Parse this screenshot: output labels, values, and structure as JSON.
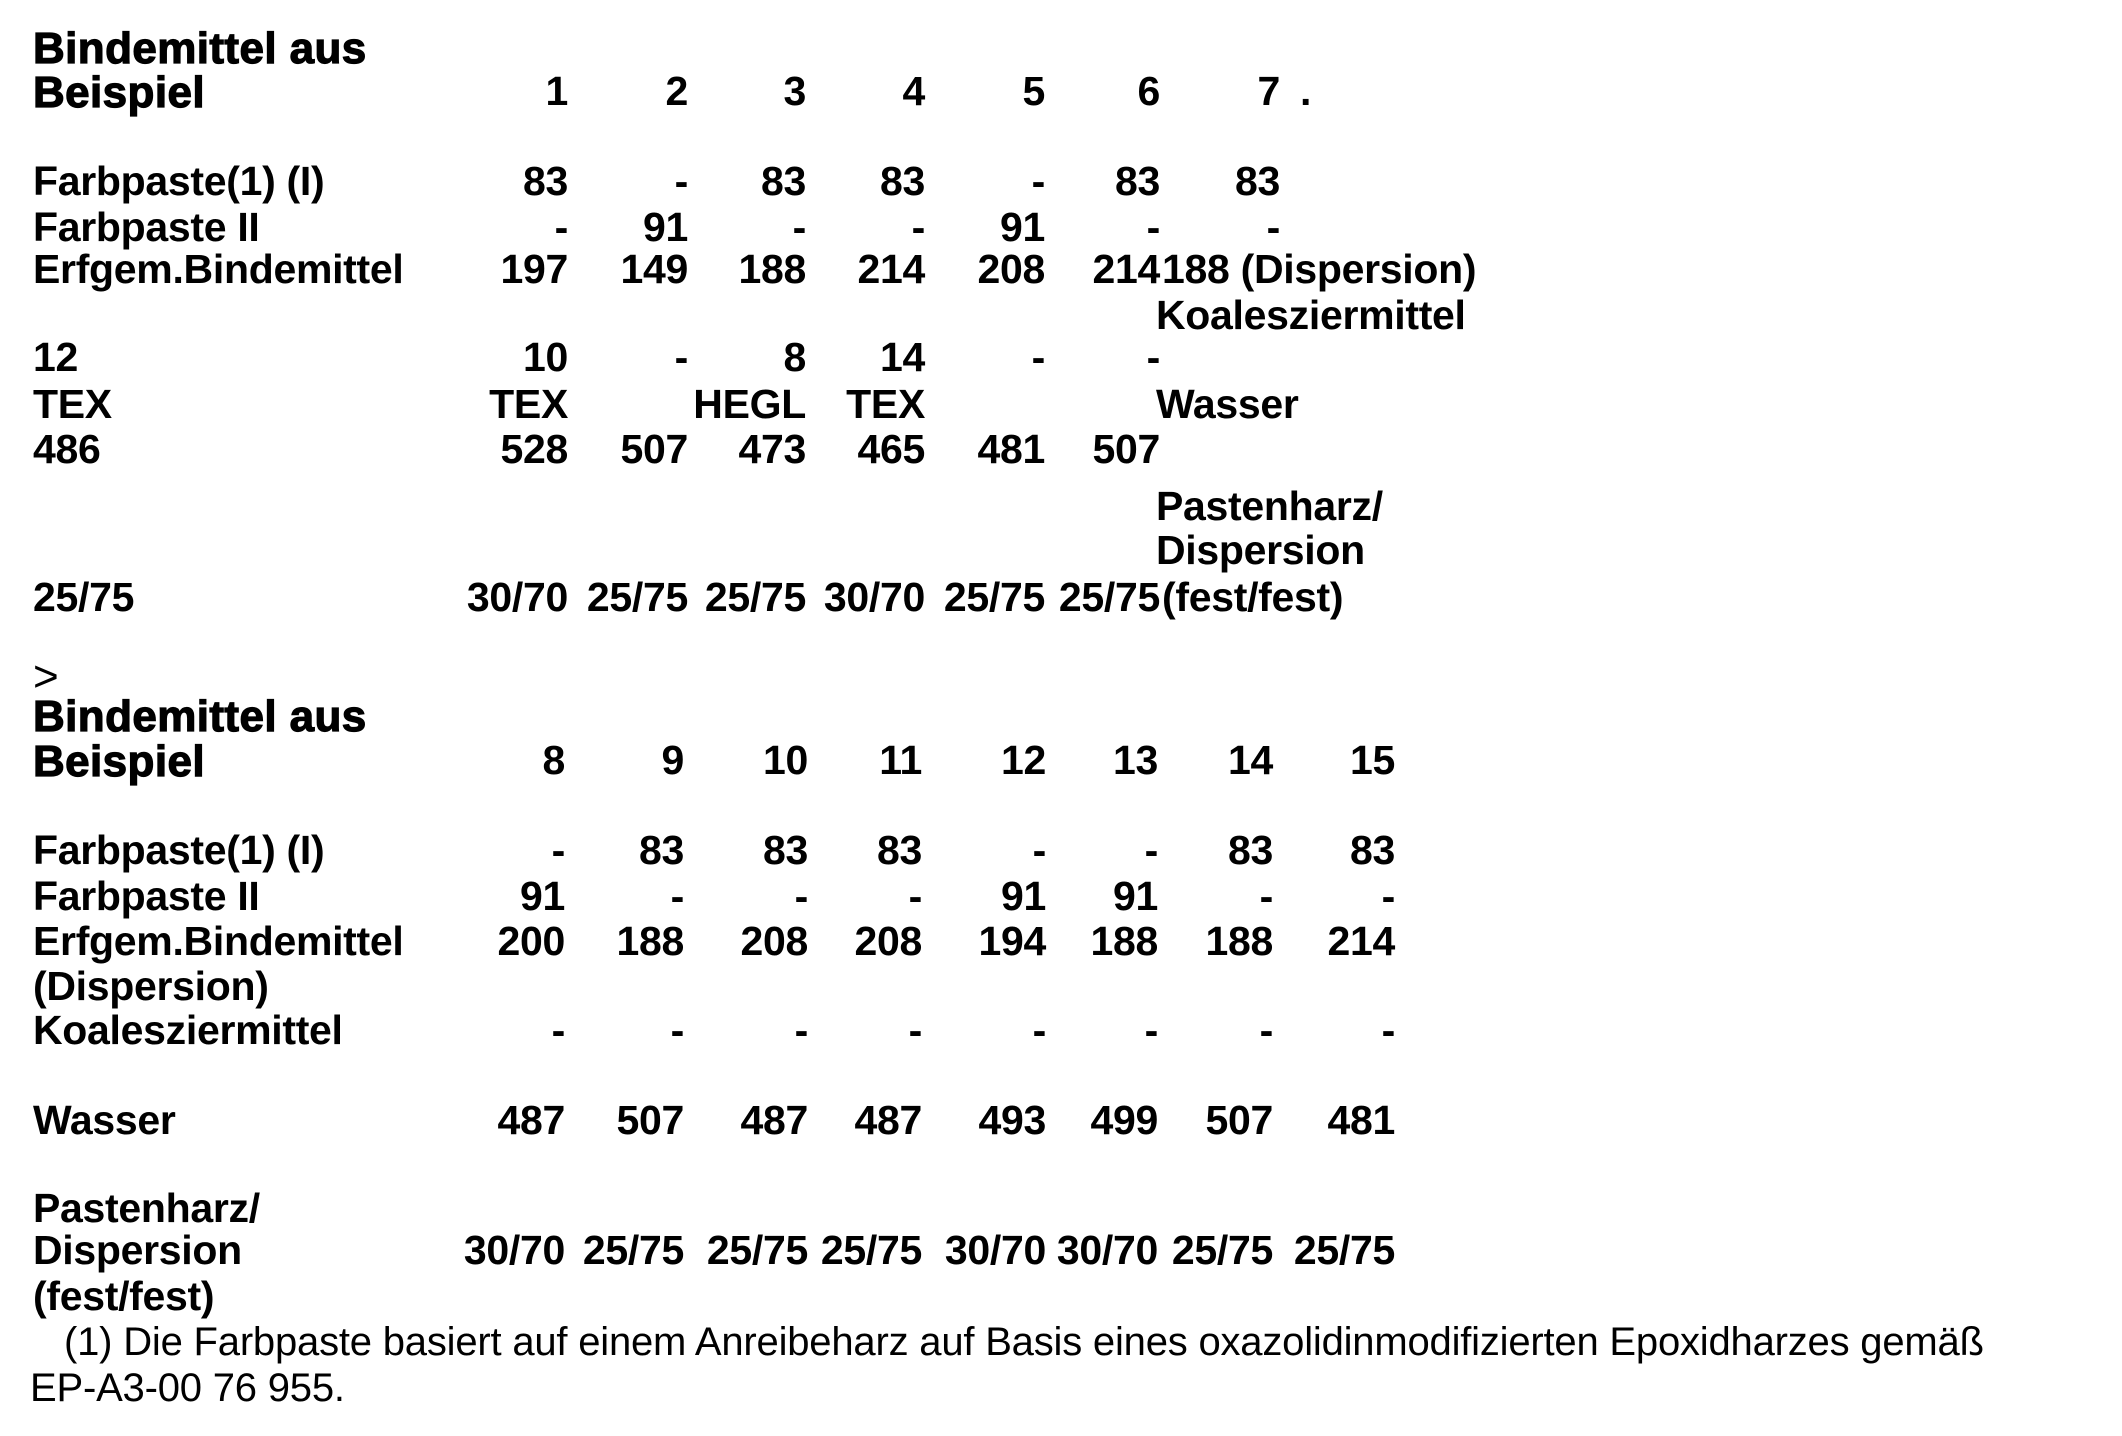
{
  "document": {
    "type": "scanned-patent-table-page",
    "text_color": "#000000",
    "background_color": "#ffffff",
    "tables": [
      {
        "lead_symbol": "",
        "title_line1": "Bindemittel aus",
        "title_line2": "Beispiel",
        "column_headers": [
          "1",
          "2",
          "3",
          "4",
          "5",
          "6",
          "7"
        ],
        "header_suffix": ".",
        "rows": [
          {
            "label": "Farbpaste(1) (I)",
            "values": [
              "83",
              "-",
              "83",
              "83",
              "-",
              "83",
              "83"
            ]
          },
          {
            "label": "Farbpaste II",
            "values": [
              "-",
              "91",
              "-",
              "-",
              "91",
              "-",
              "-"
            ]
          },
          {
            "label": "Erfgem.Bindemittel",
            "values": [
              "197",
              "149",
              "188",
              "214",
              "208",
              "214"
            ],
            "trailing": "188 (Dispersion)"
          },
          {
            "right_label": "Koalesziermittel"
          },
          {
            "label": "12",
            "values": [
              "10",
              "-",
              "8",
              "14",
              "-",
              "-"
            ]
          },
          {
            "label": "TEX",
            "values": [
              "TEX",
              "",
              "HEGL",
              "TEX"
            ],
            "right_label": "Wasser"
          },
          {
            "label": "486",
            "values": [
              "528",
              "507",
              "473",
              "465",
              "481",
              "507"
            ]
          },
          {
            "right_label": "Pastenharz/"
          },
          {
            "right_label": "Dispersion"
          },
          {
            "label": "25/75",
            "values": [
              "30/70",
              "25/75",
              "25/75",
              "30/70",
              "25/75",
              "25/75"
            ],
            "trailing": "(fest/fest)"
          }
        ]
      },
      {
        "lead_symbol": ">",
        "title_line1": "Bindemittel aus",
        "title_line2": "Beispiel",
        "column_headers": [
          "8",
          "9",
          "10",
          "11",
          "12",
          "13",
          "14",
          "15"
        ],
        "header_suffix": "",
        "rows": [
          {
            "label": "Farbpaste(1) (I)",
            "values": [
              "-",
              "83",
              "83",
              "83",
              "-",
              "-",
              "83",
              "83"
            ]
          },
          {
            "label": "Farbpaste II",
            "values": [
              "91",
              "-",
              "-",
              "-",
              "91",
              "91",
              "-",
              "-"
            ]
          },
          {
            "label": "Erfgem.Bindemittel",
            "values": [
              "200",
              "188",
              "208",
              "208",
              "194",
              "188",
              "188",
              "214"
            ]
          },
          {
            "label": "(Dispersion)"
          },
          {
            "label": "Koalesziermittel",
            "values": [
              "-",
              "-",
              "-",
              "-",
              "-",
              "-",
              "-",
              "-"
            ]
          },
          {
            "label": "Wasser",
            "values": [
              "487",
              "507",
              "487",
              "487",
              "493",
              "499",
              "507",
              "481"
            ]
          },
          {
            "label": "Pastenharz/"
          },
          {
            "label": "Dispersion",
            "values": [
              "30/70",
              "25/75",
              "25/75",
              "25/75",
              "30/70",
              "30/70",
              "25/75",
              "25/75"
            ]
          },
          {
            "label": "(fest/fest)"
          }
        ]
      }
    ],
    "footnote_line1": "(1) Die Farbpaste basiert auf einem Anreibeharz auf Basis eines oxazolidinmodifizierten Epoxidharzes gemäß",
    "footnote_line2": "EP-A3-00 76 955."
  }
}
